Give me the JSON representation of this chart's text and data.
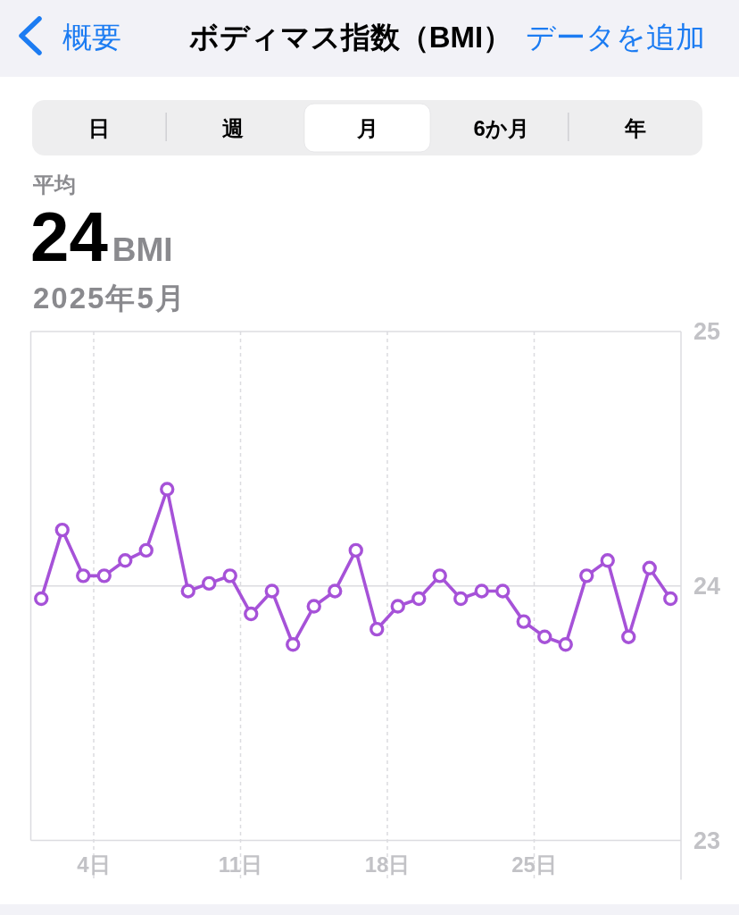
{
  "chart_data": {
    "type": "line",
    "title": "ボディマス指数（BMI）",
    "subtitle": "2025年5月",
    "annotations": [
      "概要",
      "データを追加",
      "日",
      "週",
      "月",
      "6か月",
      "年",
      "平均",
      "24",
      "BMI"
    ],
    "x": [
      "2025-05-01T12:00",
      "2025-05-02T12:00",
      "2025-05-03T12:00",
      "2025-05-04T12:00",
      "2025-05-05T12:00",
      "2025-05-06T12:00",
      "2025-05-07T12:00",
      "2025-05-08T12:00",
      "2025-05-09T12:00",
      "2025-05-10T12:00",
      "2025-05-11T12:00",
      "2025-05-12T12:00",
      "2025-05-13T12:00",
      "2025-05-14T12:00",
      "2025-05-15T12:00",
      "2025-05-16T12:00",
      "2025-05-17T12:00",
      "2025-05-18T12:00",
      "2025-05-19T12:00",
      "2025-05-20T12:00",
      "2025-05-21T12:00",
      "2025-05-22T12:00",
      "2025-05-23T12:00",
      "2025-05-24T12:00",
      "2025-05-25T12:00",
      "2025-05-26T12:00",
      "2025-05-27T12:00",
      "2025-05-28T12:00",
      "2025-05-29T12:00",
      "2025-05-30T12:00",
      "2025-05-31T12:00"
    ],
    "series": [
      {
        "color": "#a652d8",
        "values": [
          23.95,
          24.22,
          24.04,
          24.04,
          24.1,
          24.14,
          24.38,
          23.98,
          24.01,
          24.04,
          23.89,
          23.98,
          23.77,
          23.92,
          23.98,
          24.14,
          23.83,
          23.92,
          23.95,
          24.04,
          23.95,
          23.98,
          23.98,
          23.86,
          23.8,
          23.77,
          24.04,
          24.1,
          23.8,
          24.07,
          23.95
        ]
      }
    ],
    "xlim": [
      "2025-05-01",
      "2025-06-01"
    ],
    "xticks": [
      {
        "value": "2025-05-04",
        "label": "4日"
      },
      {
        "value": "2025-05-11",
        "label": "11日"
      },
      {
        "value": "2025-05-18",
        "label": "18日"
      },
      {
        "value": "2025-05-25",
        "label": "25日"
      }
    ],
    "ylim": [
      23,
      25
    ],
    "yticks": [
      23,
      24,
      25
    ],
    "ref_lines": [
      {
        "axis": "y",
        "value": 24,
        "color": "#dcdce0",
        "line_style": "solid"
      }
    ],
    "grid": "x",
    "marker": "circle",
    "line_style": "solid"
  }
}
